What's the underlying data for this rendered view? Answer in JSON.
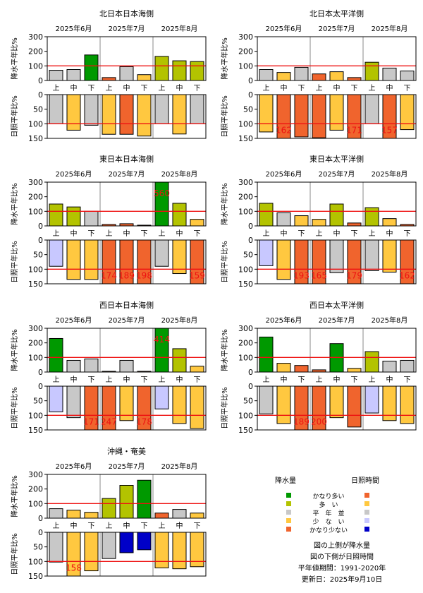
{
  "months": [
    "2025年6月",
    "2025年7月",
    "2025年8月"
  ],
  "dekads": [
    "上",
    "中",
    "下"
  ],
  "ylabel_rain": "降水平年比%",
  "ylabel_sun": "日照平年比%",
  "rain_ticks": [
    0,
    100,
    200,
    300
  ],
  "sun_ticks": [
    0,
    50,
    100,
    150
  ],
  "colors": {
    "rain": {
      "very_high": "#009900",
      "high": "#b3c300",
      "normal": "#c8c8c8",
      "low": "#ffc840",
      "very_low": "#f0642d"
    },
    "sun": {
      "very_high": "#f0642d",
      "high": "#ffc840",
      "normal": "#c8c8c8",
      "low": "#c8c8ff",
      "very_low": "#0000c8"
    },
    "normal_line": "#ee1111",
    "overflow_text": "#ee1111"
  },
  "chart_data": [
    {
      "type": "bar",
      "title": "北日本日本海側",
      "categories": [
        "6月上",
        "6月中",
        "6月下",
        "7月上",
        "7月中",
        "7月下",
        "8月上",
        "8月中",
        "8月下"
      ],
      "series": [
        {
          "name": "降水量",
          "values": [
            70,
            75,
            175,
            20,
            95,
            40,
            165,
            135,
            130
          ],
          "classes": [
            "normal",
            "normal",
            "very_high",
            "very_low",
            "normal",
            "low",
            "high",
            "high",
            "high"
          ]
        },
        {
          "name": "日照時間",
          "values": [
            100,
            122,
            105,
            136,
            136,
            142,
            100,
            135,
            100
          ],
          "classes": [
            "normal",
            "low2",
            "normal",
            "high",
            "very_high",
            "high",
            "normal",
            "high",
            "normal"
          ]
        }
      ],
      "labels": {
        "rain": [],
        "sun": []
      },
      "ylim_rain": [
        0,
        300
      ],
      "ylim_sun": [
        0,
        150
      ]
    },
    {
      "type": "bar",
      "title": "北日本太平洋側",
      "categories": [
        "6月上",
        "6月中",
        "6月下",
        "7月上",
        "7月中",
        "7月下",
        "8月上",
        "8月中",
        "8月下"
      ],
      "series": [
        {
          "name": "降水量",
          "values": [
            75,
            55,
            90,
            45,
            60,
            20,
            125,
            85,
            65
          ],
          "classes": [
            "normal",
            "low",
            "normal",
            "very_low",
            "low",
            "very_low",
            "high",
            "normal",
            "normal"
          ]
        },
        {
          "name": "日照時間",
          "values": [
            128,
            162,
            145,
            148,
            122,
            171,
            100,
            157,
            120
          ],
          "classes": [
            "high",
            "very_high",
            "very_high",
            "very_high",
            "high",
            "very_high",
            "normal",
            "very_high",
            "high"
          ]
        }
      ],
      "labels": {
        "rain": [],
        "sun": [
          [
            "6月中",
            "162"
          ],
          [
            "7月下",
            "171"
          ],
          [
            "8月中",
            "157"
          ]
        ]
      },
      "ylim_rain": [
        0,
        300
      ],
      "ylim_sun": [
        0,
        150
      ]
    },
    {
      "type": "bar",
      "title": "東日本日本海側",
      "categories": [
        "6月上",
        "6月中",
        "6月下",
        "7月上",
        "7月中",
        "7月下",
        "8月上",
        "8月中",
        "8月下"
      ],
      "series": [
        {
          "name": "降水量",
          "values": [
            150,
            130,
            100,
            10,
            15,
            5,
            560,
            155,
            45
          ],
          "classes": [
            "high",
            "high",
            "normal",
            "very_low",
            "very_low",
            "very_low",
            "very_high",
            "high",
            "low"
          ]
        },
        {
          "name": "日照時間",
          "values": [
            90,
            135,
            135,
            174,
            189,
            198,
            90,
            115,
            159
          ],
          "classes": [
            "low",
            "high",
            "high",
            "very_high",
            "very_high",
            "very_high",
            "normal",
            "high",
            "very_high"
          ]
        }
      ],
      "labels": {
        "rain": [
          [
            "8月上",
            "560"
          ]
        ],
        "sun": [
          [
            "7月上",
            "174"
          ],
          [
            "7月中",
            "189"
          ],
          [
            "7月下",
            "198"
          ],
          [
            "8月下",
            "159"
          ]
        ]
      },
      "ylim_rain": [
        0,
        300
      ],
      "ylim_sun": [
        0,
        150
      ]
    },
    {
      "type": "bar",
      "title": "東日本太平洋側",
      "categories": [
        "6月上",
        "6月中",
        "6月下",
        "7月上",
        "7月中",
        "7月下",
        "8月上",
        "8月中",
        "8月下"
      ],
      "series": [
        {
          "name": "降水量",
          "values": [
            155,
            90,
            70,
            45,
            150,
            20,
            125,
            50,
            10
          ],
          "classes": [
            "high",
            "normal",
            "low",
            "low",
            "high",
            "very_low",
            "high",
            "low",
            "very_low"
          ]
        },
        {
          "name": "日照時間",
          "values": [
            88,
            135,
            193,
            165,
            112,
            179,
            105,
            110,
            162
          ],
          "classes": [
            "low",
            "high",
            "very_high",
            "very_high",
            "normal",
            "very_high",
            "normal",
            "high",
            "very_high"
          ]
        }
      ],
      "labels": {
        "rain": [],
        "sun": [
          [
            "6月下",
            "193"
          ],
          [
            "7月上",
            "165"
          ],
          [
            "7月下",
            "179"
          ],
          [
            "8月下",
            "162"
          ]
        ]
      },
      "ylim_rain": [
        0,
        300
      ],
      "ylim_sun": [
        0,
        150
      ]
    },
    {
      "type": "bar",
      "title": "西日本日本海側",
      "categories": [
        "6月上",
        "6月中",
        "6月下",
        "7月上",
        "7月中",
        "7月下",
        "8月上",
        "8月中",
        "8月下"
      ],
      "series": [
        {
          "name": "降水量",
          "values": [
            230,
            80,
            90,
            5,
            80,
            5,
            414,
            160,
            40
          ],
          "classes": [
            "very_high",
            "normal",
            "normal",
            "very_low",
            "normal",
            "very_low",
            "very_high",
            "high",
            "low"
          ]
        },
        {
          "name": "日照時間",
          "values": [
            88,
            108,
            171,
            247,
            118,
            178,
            78,
            128,
            145
          ],
          "classes": [
            "low",
            "normal",
            "very_high",
            "very_high",
            "high",
            "very_high",
            "low",
            "high",
            "high"
          ]
        }
      ],
      "labels": {
        "rain": [
          [
            "8月上",
            "414"
          ]
        ],
        "sun": [
          [
            "6月下",
            "171"
          ],
          [
            "7月上",
            "247"
          ],
          [
            "7月下",
            "178"
          ]
        ]
      },
      "ylim_rain": [
        0,
        300
      ],
      "ylim_sun": [
        0,
        150
      ]
    },
    {
      "type": "bar",
      "title": "西日本太平洋側",
      "categories": [
        "6月上",
        "6月中",
        "6月下",
        "7月上",
        "7月中",
        "7月下",
        "8月上",
        "8月中",
        "8月下"
      ],
      "series": [
        {
          "name": "降水量",
          "values": [
            240,
            60,
            45,
            15,
            195,
            25,
            140,
            75,
            80
          ],
          "classes": [
            "very_high",
            "low",
            "very_low",
            "very_low",
            "very_high",
            "low",
            "high",
            "normal",
            "normal"
          ]
        },
        {
          "name": "日照時間",
          "values": [
            95,
            128,
            189,
            200,
            108,
            140,
            92,
            118,
            128
          ],
          "classes": [
            "normal",
            "high",
            "very_high",
            "very_high",
            "high",
            "very_high",
            "low",
            "high",
            "high"
          ]
        }
      ],
      "labels": {
        "rain": [],
        "sun": [
          [
            "6月下",
            "189"
          ],
          [
            "7月上",
            "200"
          ]
        ]
      },
      "ylim_rain": [
        0,
        300
      ],
      "ylim_sun": [
        0,
        150
      ]
    },
    {
      "type": "bar",
      "title": "沖縄・奄美",
      "categories": [
        "6月上",
        "6月中",
        "6月下",
        "7月上",
        "7月中",
        "7月下",
        "8月上",
        "8月中",
        "8月下"
      ],
      "series": [
        {
          "name": "降水量",
          "values": [
            65,
            55,
            40,
            135,
            225,
            260,
            35,
            60,
            35
          ],
          "classes": [
            "normal",
            "low",
            "low",
            "high",
            "high",
            "very_high",
            "very_low",
            "normal",
            "low"
          ]
        },
        {
          "name": "日照時間",
          "values": [
            102,
            158,
            132,
            90,
            70,
            60,
            122,
            125,
            118
          ],
          "classes": [
            "normal",
            "high",
            "high",
            "normal",
            "very_low",
            "very_low",
            "high",
            "high",
            "high"
          ]
        }
      ],
      "labels": {
        "rain": [],
        "sun": [
          [
            "6月中",
            "158"
          ]
        ]
      },
      "ylim_rain": [
        0,
        300
      ],
      "ylim_sun": [
        0,
        150
      ]
    }
  ],
  "legend": {
    "rain_title": "降水量",
    "sun_title": "日照時間",
    "rows": [
      "かなり多い",
      "多　い",
      "平　年　並",
      "少　な　い",
      "かなり少ない"
    ],
    "notes": [
      "図の上側が降水量",
      "図の下側が日照時間",
      "平年値期間：1991-2020年",
      "更新日：2025年9月10日"
    ]
  }
}
